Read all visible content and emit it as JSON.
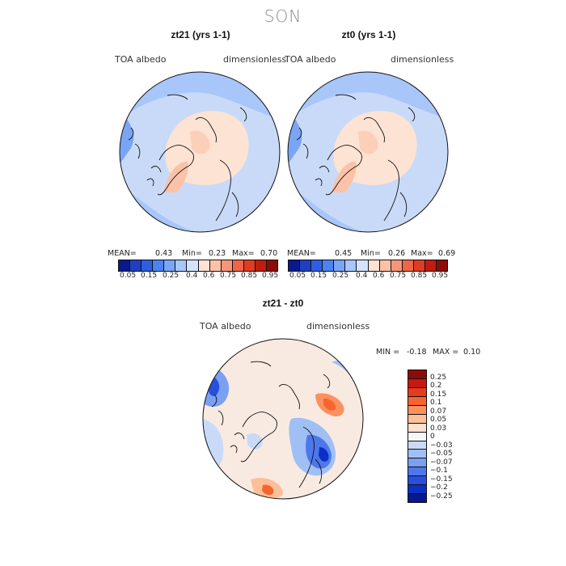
{
  "season": "SON",
  "panels": [
    {
      "title": "zt21 (yrs 1-1)",
      "field": "TOA albedo",
      "units": "dimensionless",
      "stats": {
        "mean_label": "MEAN=",
        "mean": "0.43",
        "min_label": "Min=",
        "min": "0.23",
        "max_label": "Max=",
        "max": "0.70"
      }
    },
    {
      "title": "zt0 (yrs 1-1)",
      "field": "TOA albedo",
      "units": "dimensionless",
      "stats": {
        "mean_label": "MEAN=",
        "mean": "0.45",
        "min_label": "Min=",
        "min": "0.26",
        "max_label": "Max=",
        "max": "0.69"
      }
    }
  ],
  "colorbar_top": {
    "colors": [
      "#0a1a8c",
      "#1f3fc0",
      "#2f5fe0",
      "#4e82f0",
      "#7aa5f5",
      "#a8c6fa",
      "#d3e3fb",
      "#fde3d3",
      "#fbc2a8",
      "#f6957a",
      "#ef6548",
      "#e03b23",
      "#bf1d10",
      "#8c0d08"
    ],
    "tick_labels": [
      "0.05",
      "0.15",
      "0.25",
      "0.4",
      "0.6",
      "0.75",
      "0.85",
      "0.95"
    ]
  },
  "diff_panel": {
    "title": "zt21 - zt0",
    "field": "TOA albedo",
    "units": "dimensionless",
    "stats": {
      "min_label": "MIN =",
      "min": "-0.18",
      "max_label": "MAX =",
      "max": "0.10"
    }
  },
  "colorbar_diff": {
    "colors": [
      "#8c0d08",
      "#c41a0f",
      "#e83a1d",
      "#f8642f",
      "#fc9060",
      "#fdbf98",
      "#fde0cd",
      "#f4f6f8",
      "#c9daf8",
      "#a0bff5",
      "#7aa0f2",
      "#4d78ec",
      "#2850dd",
      "#0d2fc4",
      "#08188f"
    ],
    "tick_labels": [
      "0.25",
      "0.2",
      "0.15",
      "0.1",
      "0.07",
      "0.05",
      "0.03",
      "0",
      "−0.03",
      "−0.05",
      "−0.07",
      "−0.1",
      "−0.15",
      "−0.2",
      "−0.25"
    ]
  }
}
